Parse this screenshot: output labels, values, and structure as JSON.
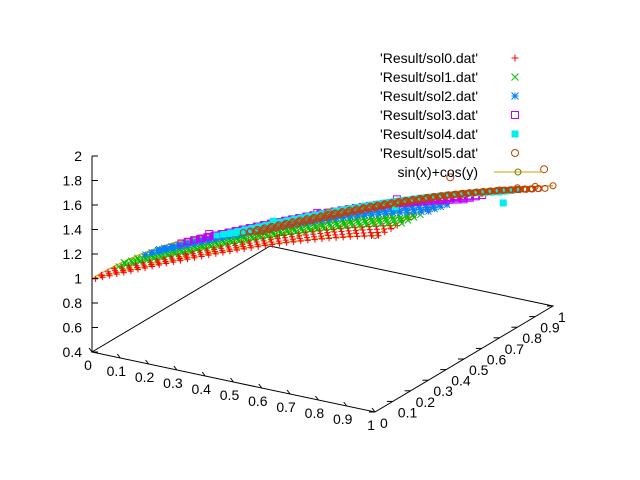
{
  "chart_data": {
    "type": "scatter",
    "projection": "3d",
    "title": "",
    "xlabel": "",
    "ylabel": "",
    "zlabel": "",
    "xlim": [
      0,
      1
    ],
    "ylim": [
      0,
      1
    ],
    "zlim": [
      0.4,
      2
    ],
    "x_ticks": [
      "0",
      "0.1",
      "0.2",
      "0.3",
      "0.4",
      "0.5",
      "0.6",
      "0.7",
      "0.8",
      "0.9",
      "1"
    ],
    "y_ticks": [
      "0",
      "0.1",
      "0.2",
      "0.3",
      "0.4",
      "0.5",
      "0.6",
      "0.7",
      "0.8",
      "0.9",
      "1"
    ],
    "z_ticks": [
      "0.4",
      "0.6",
      "0.8",
      "1",
      "1.2",
      "1.4",
      "1.6",
      "1.8",
      "2"
    ],
    "grid": false,
    "legend_position": "top-right",
    "series": [
      {
        "name": "'Result/sol0.dat'",
        "marker": "plus",
        "color": "#ff0000",
        "points": [
          [
            0.02,
            0.02,
            1.02
          ],
          [
            0.3,
            0.05,
            1.3
          ],
          [
            0.6,
            0.1,
            1.56
          ],
          [
            1,
            0.15,
            1.83
          ]
        ]
      },
      {
        "name": "'Result/sol1.dat'",
        "marker": "cross",
        "color": "#00c000",
        "points": [
          [
            0.02,
            0.15,
            1.01
          ],
          [
            0.4,
            0.2,
            1.37
          ],
          [
            0.8,
            0.25,
            1.72
          ]
        ]
      },
      {
        "name": "'Result/sol2.dat'",
        "marker": "star",
        "color": "#0080ff",
        "points": [
          [
            0.05,
            0.3,
            1.0
          ],
          [
            0.5,
            0.35,
            1.42
          ],
          [
            0.9,
            0.4,
            1.72
          ]
        ]
      },
      {
        "name": "'Result/sol3.dat'",
        "marker": "open-square",
        "color": "#c000ff",
        "points": [
          [
            0.1,
            0.5,
            0.98
          ],
          [
            0.45,
            0.55,
            1.28
          ],
          [
            0.7,
            0.6,
            1.47
          ]
        ]
      },
      {
        "name": "'Result/sol4.dat'",
        "marker": "filled-square",
        "color": "#00eeee",
        "points": [
          [
            0.2,
            0.7,
            0.96
          ],
          [
            0.6,
            0.75,
            1.23
          ],
          [
            0.95,
            0.8,
            1.39
          ]
        ]
      },
      {
        "name": "'Result/sol5.dat'",
        "marker": "open-circle",
        "color": "#c04000",
        "points": [
          [
            0.3,
            0.85,
            0.95
          ],
          [
            0.7,
            0.9,
            1.39
          ],
          [
            1,
            0.95,
            1.56
          ]
        ]
      }
    ],
    "surface": {
      "name": "sin(x)+cos(y)",
      "marker": "open-circle-line",
      "color": "#c8a000"
    }
  }
}
